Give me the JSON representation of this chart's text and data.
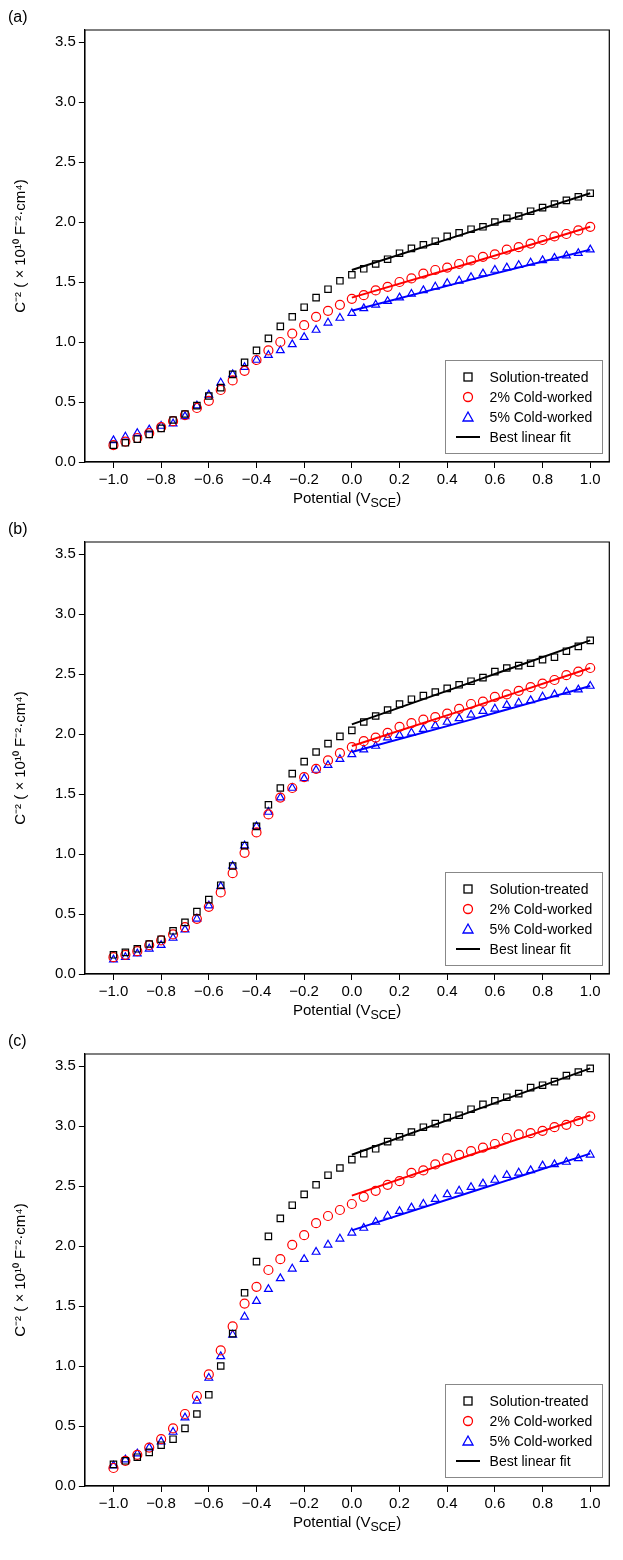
{
  "chart_data": [
    {
      "type": "scatter",
      "title": "(a)",
      "xlabel": "Potential (V$_{SCE}$)",
      "ylabel": "C⁻² (×10¹⁰ F⁻²·cm⁴)",
      "legend": "bottom right",
      "x": [
        -1,
        -0.95,
        -0.9,
        -0.85,
        -0.8,
        -0.75,
        -0.7,
        -0.65,
        -0.6,
        -0.55,
        -0.5,
        -0.45,
        -0.4,
        -0.35,
        -0.3,
        -0.25,
        -0.2,
        -0.15,
        -0.1,
        -0.05,
        0,
        0.05,
        0.1,
        0.15,
        0.2,
        0.25,
        0.3,
        0.35,
        0.4,
        0.45,
        0.5,
        0.55,
        0.6,
        0.65,
        0.7,
        0.75,
        0.8,
        0.85,
        0.9,
        0.95,
        1
      ],
      "xlim": [
        -1.12,
        1.08
      ],
      "xticks": [
        {
          "value": -1,
          "label": "−1.0"
        },
        {
          "value": -0.8,
          "label": "−0.8"
        },
        {
          "value": -0.6,
          "label": "−0.6"
        },
        {
          "value": -0.4,
          "label": "−0.4"
        },
        {
          "value": -0.2,
          "label": "−0.2"
        },
        {
          "value": 0,
          "label": "0.0"
        },
        0.2,
        0.4,
        0.6,
        0.8,
        {
          "value": 1,
          "label": "1.0"
        }
      ],
      "ylim": [
        0,
        3.6
      ],
      "yticks": [
        {
          "value": 0,
          "label": "0.0"
        },
        0.5,
        {
          "value": 1,
          "label": "1.0"
        },
        1.5,
        {
          "value": 2,
          "label": "2.0"
        },
        2.5,
        {
          "value": 3,
          "label": "3.0"
        },
        3.5
      ],
      "series": [
        {
          "name": "Solution-treated",
          "color": "#000000",
          "marker": "square",
          "values": [
            0.14,
            0.16,
            0.19,
            0.23,
            0.28,
            0.35,
            0.4,
            0.47,
            0.55,
            0.62,
            0.73,
            0.83,
            0.93,
            1.03,
            1.13,
            1.21,
            1.29,
            1.37,
            1.44,
            1.51,
            1.56,
            1.61,
            1.65,
            1.69,
            1.74,
            1.78,
            1.81,
            1.84,
            1.88,
            1.91,
            1.94,
            1.96,
            2.0,
            2.03,
            2.05,
            2.09,
            2.12,
            2.15,
            2.18,
            2.21,
            2.24
          ]
        },
        {
          "name": "2% Cold-worked",
          "color": "#ff0000",
          "marker": "circle",
          "values": [
            0.14,
            0.17,
            0.2,
            0.24,
            0.29,
            0.34,
            0.39,
            0.45,
            0.51,
            0.6,
            0.68,
            0.76,
            0.85,
            0.93,
            1.0,
            1.07,
            1.14,
            1.21,
            1.26,
            1.31,
            1.36,
            1.39,
            1.43,
            1.46,
            1.5,
            1.53,
            1.57,
            1.6,
            1.62,
            1.65,
            1.68,
            1.71,
            1.73,
            1.77,
            1.79,
            1.82,
            1.85,
            1.88,
            1.9,
            1.93,
            1.96
          ]
        },
        {
          "name": "5% Cold-worked",
          "color": "#0000ff",
          "marker": "triangle",
          "values": [
            0.18,
            0.21,
            0.24,
            0.27,
            0.3,
            0.32,
            0.38,
            0.47,
            0.56,
            0.66,
            0.73,
            0.79,
            0.85,
            0.89,
            0.93,
            0.98,
            1.04,
            1.1,
            1.16,
            1.2,
            1.24,
            1.28,
            1.31,
            1.34,
            1.37,
            1.4,
            1.43,
            1.46,
            1.49,
            1.51,
            1.54,
            1.57,
            1.6,
            1.62,
            1.64,
            1.66,
            1.68,
            1.7,
            1.72,
            1.74,
            1.77
          ]
        },
        {
          "name": "Best linear fit",
          "type": "line",
          "color": "#000000",
          "marker": "none",
          "x": [
            0,
            0.5,
            1
          ],
          "values": [
            1.6,
            1.92,
            2.24
          ]
        },
        {
          "type": "line",
          "color": "#ff0000",
          "marker": "none",
          "x": [
            0,
            0.5,
            1
          ],
          "values": [
            1.37,
            1.66,
            1.96
          ]
        },
        {
          "type": "line",
          "color": "#0000ff",
          "marker": "none",
          "x": [
            0,
            0.5,
            1
          ],
          "values": [
            1.26,
            1.52,
            1.77
          ]
        }
      ]
    },
    {
      "type": "scatter",
      "title": "(b)",
      "xlabel": "Potential (V$_{SCE}$)",
      "ylabel": "C⁻² (×10¹⁰ F⁻²·cm⁴)",
      "legend": "bottom right",
      "x": [
        -1,
        -0.95,
        -0.9,
        -0.85,
        -0.8,
        -0.75,
        -0.7,
        -0.65,
        -0.6,
        -0.55,
        -0.5,
        -0.45,
        -0.4,
        -0.35,
        -0.3,
        -0.25,
        -0.2,
        -0.15,
        -0.1,
        -0.05,
        0,
        0.05,
        0.1,
        0.15,
        0.2,
        0.25,
        0.3,
        0.35,
        0.4,
        0.45,
        0.5,
        0.55,
        0.6,
        0.65,
        0.7,
        0.75,
        0.8,
        0.85,
        0.9,
        0.95,
        1
      ],
      "xlim": [
        -1.12,
        1.08
      ],
      "xticks": [
        {
          "value": -1,
          "label": "−1.0"
        },
        {
          "value": -0.8,
          "label": "−0.8"
        },
        {
          "value": -0.6,
          "label": "−0.6"
        },
        {
          "value": -0.4,
          "label": "−0.4"
        },
        {
          "value": -0.2,
          "label": "−0.2"
        },
        {
          "value": 0,
          "label": "0.0"
        },
        0.2,
        0.4,
        0.6,
        0.8,
        {
          "value": 1,
          "label": "1.0"
        }
      ],
      "ylim": [
        0,
        3.6
      ],
      "yticks": [
        {
          "value": 0,
          "label": "0.0"
        },
        0.5,
        {
          "value": 1,
          "label": "1.0"
        },
        1.5,
        {
          "value": 2,
          "label": "2.0"
        },
        2.5,
        {
          "value": 3,
          "label": "3.0"
        },
        3.5
      ],
      "series": [
        {
          "name": "Solution-treated",
          "color": "#000000",
          "marker": "square",
          "values": [
            0.16,
            0.18,
            0.21,
            0.25,
            0.29,
            0.36,
            0.43,
            0.52,
            0.62,
            0.74,
            0.9,
            1.07,
            1.23,
            1.41,
            1.55,
            1.67,
            1.77,
            1.85,
            1.92,
            1.98,
            2.03,
            2.1,
            2.15,
            2.2,
            2.25,
            2.29,
            2.32,
            2.35,
            2.38,
            2.41,
            2.44,
            2.47,
            2.52,
            2.55,
            2.57,
            2.59,
            2.62,
            2.64,
            2.69,
            2.73,
            2.78
          ]
        },
        {
          "name": "2% Cold-worked",
          "color": "#ff0000",
          "marker": "circle",
          "values": [
            0.14,
            0.16,
            0.19,
            0.24,
            0.28,
            0.33,
            0.39,
            0.46,
            0.56,
            0.68,
            0.84,
            1.01,
            1.18,
            1.33,
            1.47,
            1.55,
            1.64,
            1.71,
            1.78,
            1.84,
            1.89,
            1.94,
            1.97,
            2.01,
            2.06,
            2.09,
            2.12,
            2.14,
            2.17,
            2.21,
            2.25,
            2.27,
            2.31,
            2.33,
            2.36,
            2.39,
            2.42,
            2.45,
            2.49,
            2.52,
            2.55
          ]
        },
        {
          "name": "5% Cold-worked",
          "color": "#0000ff",
          "marker": "triangle",
          "values": [
            0.12,
            0.14,
            0.17,
            0.21,
            0.24,
            0.3,
            0.37,
            0.46,
            0.57,
            0.73,
            0.9,
            1.07,
            1.23,
            1.35,
            1.47,
            1.55,
            1.63,
            1.7,
            1.74,
            1.79,
            1.83,
            1.87,
            1.9,
            1.97,
            1.99,
            2.01,
            2.04,
            2.07,
            2.1,
            2.13,
            2.16,
            2.19,
            2.21,
            2.24,
            2.26,
            2.28,
            2.31,
            2.33,
            2.35,
            2.37,
            2.4
          ]
        },
        {
          "name": "Best linear fit",
          "type": "line",
          "color": "#000000",
          "marker": "none",
          "x": [
            0,
            0.5,
            1
          ],
          "values": [
            2.08,
            2.43,
            2.78
          ]
        },
        {
          "type": "line",
          "color": "#ff0000",
          "marker": "none",
          "x": [
            0,
            0.5,
            1
          ],
          "values": [
            1.9,
            2.22,
            2.55
          ]
        },
        {
          "type": "line",
          "color": "#0000ff",
          "marker": "none",
          "x": [
            0,
            0.5,
            1
          ],
          "values": [
            1.85,
            2.12,
            2.4
          ]
        }
      ]
    },
    {
      "type": "scatter",
      "title": "(c)",
      "xlabel": "Potential (V$_{SCE}$)",
      "ylabel": "C⁻² (×10¹⁰ F⁻²·cm⁴)",
      "legend": "bottom right",
      "x": [
        -1,
        -0.95,
        -0.9,
        -0.85,
        -0.8,
        -0.75,
        -0.7,
        -0.65,
        -0.6,
        -0.55,
        -0.5,
        -0.45,
        -0.4,
        -0.35,
        -0.3,
        -0.25,
        -0.2,
        -0.15,
        -0.1,
        -0.05,
        0,
        0.05,
        0.1,
        0.15,
        0.2,
        0.25,
        0.3,
        0.35,
        0.4,
        0.45,
        0.5,
        0.55,
        0.6,
        0.65,
        0.7,
        0.75,
        0.8,
        0.85,
        0.9,
        0.95,
        1
      ],
      "xlim": [
        -1.12,
        1.08
      ],
      "xticks": [
        {
          "value": -1,
          "label": "−1.0"
        },
        {
          "value": -0.8,
          "label": "−0.8"
        },
        {
          "value": -0.6,
          "label": "−0.6"
        },
        {
          "value": -0.4,
          "label": "−0.4"
        },
        {
          "value": -0.2,
          "label": "−0.2"
        },
        {
          "value": 0,
          "label": "0.0"
        },
        0.2,
        0.4,
        0.6,
        0.8,
        {
          "value": 1,
          "label": "1.0"
        }
      ],
      "ylim": [
        0,
        3.6
      ],
      "yticks": [
        {
          "value": 0,
          "label": "0.0"
        },
        0.5,
        {
          "value": 1,
          "label": "1.0"
        },
        1.5,
        {
          "value": 2,
          "label": "2.0"
        },
        2.5,
        {
          "value": 3,
          "label": "3.0"
        },
        3.5
      ],
      "series": [
        {
          "name": "Solution-treated",
          "color": "#000000",
          "marker": "square",
          "values": [
            0.18,
            0.21,
            0.24,
            0.28,
            0.34,
            0.39,
            0.48,
            0.6,
            0.76,
            1.0,
            1.27,
            1.61,
            1.87,
            2.08,
            2.23,
            2.34,
            2.43,
            2.51,
            2.59,
            2.65,
            2.72,
            2.77,
            2.81,
            2.87,
            2.91,
            2.95,
            2.99,
            3.02,
            3.07,
            3.09,
            3.14,
            3.18,
            3.21,
            3.24,
            3.27,
            3.32,
            3.34,
            3.37,
            3.42,
            3.45,
            3.48
          ]
        },
        {
          "name": "2% Cold-worked",
          "color": "#ff0000",
          "marker": "circle",
          "values": [
            0.15,
            0.21,
            0.26,
            0.32,
            0.39,
            0.48,
            0.6,
            0.75,
            0.93,
            1.13,
            1.33,
            1.52,
            1.66,
            1.8,
            1.89,
            2.01,
            2.09,
            2.19,
            2.25,
            2.3,
            2.35,
            2.41,
            2.46,
            2.51,
            2.54,
            2.61,
            2.63,
            2.68,
            2.73,
            2.76,
            2.79,
            2.82,
            2.85,
            2.9,
            2.93,
            2.94,
            2.96,
            2.99,
            3.01,
            3.04,
            3.08
          ]
        },
        {
          "name": "5% Cold-worked",
          "color": "#0000ff",
          "marker": "triangle",
          "values": [
            0.17,
            0.22,
            0.27,
            0.32,
            0.37,
            0.45,
            0.57,
            0.71,
            0.9,
            1.08,
            1.26,
            1.41,
            1.54,
            1.64,
            1.73,
            1.81,
            1.89,
            1.95,
            2.01,
            2.06,
            2.11,
            2.15,
            2.2,
            2.25,
            2.29,
            2.32,
            2.35,
            2.39,
            2.43,
            2.46,
            2.49,
            2.52,
            2.55,
            2.59,
            2.61,
            2.63,
            2.67,
            2.68,
            2.7,
            2.73,
            2.76
          ]
        },
        {
          "name": "Best linear fit",
          "type": "line",
          "color": "#000000",
          "marker": "none",
          "x": [
            0,
            0.5,
            1
          ],
          "values": [
            2.76,
            3.12,
            3.48
          ]
        },
        {
          "type": "line",
          "color": "#ff0000",
          "marker": "none",
          "x": [
            0,
            0.5,
            1
          ],
          "values": [
            2.42,
            2.76,
            3.09
          ]
        },
        {
          "type": "line",
          "color": "#0000ff",
          "marker": "none",
          "x": [
            0,
            0.5,
            1
          ],
          "values": [
            2.13,
            2.45,
            2.77
          ]
        }
      ]
    }
  ]
}
